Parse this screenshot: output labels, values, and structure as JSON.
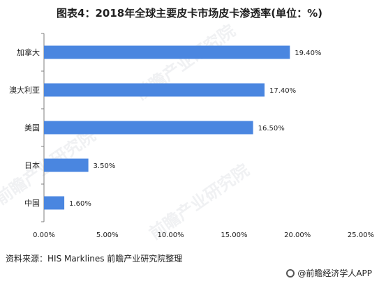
{
  "title": "图表4：2018年全球主要皮卡市场皮卡渗透率(单位：%)",
  "source": "资料来源：HIS Marklines 前瞻产业研究院整理",
  "brand": "@前瞻经济学人APP",
  "watermark": "前瞻产业研究院",
  "colors": {
    "bar": "#4a86e0",
    "axis": "#7f7f7f",
    "text": "#222222"
  },
  "chart_data": {
    "type": "bar",
    "orientation": "horizontal",
    "categories": [
      "加拿大",
      "澳大利亚",
      "美国",
      "日本",
      "中国"
    ],
    "values": [
      19.4,
      17.4,
      16.5,
      3.5,
      1.6
    ],
    "value_labels": [
      "19.40%",
      "17.40%",
      "16.50%",
      "3.50%",
      "1.60%"
    ],
    "xlim": [
      0,
      25
    ],
    "xticks": [
      0,
      5,
      10,
      15,
      20,
      25
    ],
    "xtick_labels": [
      "0.00%",
      "5.00%",
      "10.00%",
      "15.00%",
      "20.00%",
      "25.00%"
    ],
    "grid": false
  }
}
